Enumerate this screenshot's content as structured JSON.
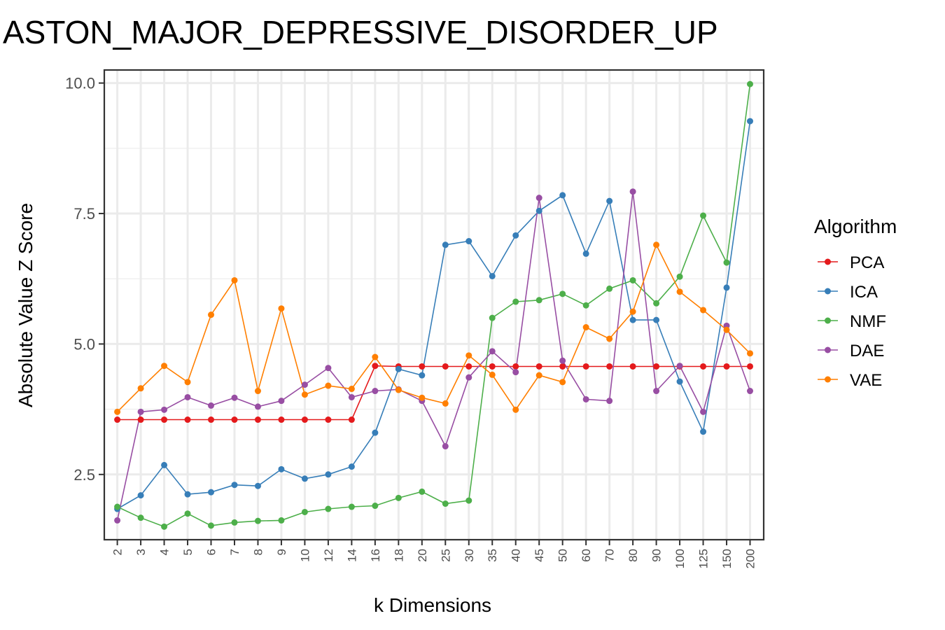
{
  "chart_data": {
    "type": "line",
    "title": "ASTON_MAJOR_DEPRESSIVE_DISORDER_UP",
    "xlabel": "k Dimensions",
    "ylabel": "Absolute Value Z Score",
    "categories": [
      "2",
      "3",
      "4",
      "5",
      "6",
      "7",
      "8",
      "9",
      "10",
      "12",
      "14",
      "16",
      "18",
      "20",
      "25",
      "30",
      "35",
      "40",
      "45",
      "50",
      "60",
      "70",
      "80",
      "90",
      "100",
      "125",
      "150",
      "200"
    ],
    "ylim": [
      1.25,
      10.25
    ],
    "yticks": [
      2.5,
      5.0,
      7.5,
      10.0
    ],
    "ytick_labels": [
      "2.5",
      "5.0",
      "7.5",
      "10.0"
    ],
    "grid": true,
    "legend": {
      "title": "Algorithm",
      "position": "right"
    },
    "series": [
      {
        "name": "PCA",
        "color": "#e41a1c",
        "values": [
          3.55,
          3.55,
          3.55,
          3.55,
          3.55,
          3.55,
          3.55,
          3.55,
          3.55,
          3.55,
          3.55,
          4.58,
          4.57,
          4.57,
          4.57,
          4.57,
          4.57,
          4.57,
          4.57,
          4.57,
          4.57,
          4.57,
          4.57,
          4.57,
          4.57,
          4.57,
          4.57,
          4.57
        ]
      },
      {
        "name": "ICA",
        "color": "#377eb8",
        "values": [
          1.84,
          2.1,
          2.68,
          2.12,
          2.16,
          2.3,
          2.28,
          2.6,
          2.42,
          2.5,
          2.65,
          3.3,
          4.52,
          4.4,
          6.9,
          6.97,
          6.3,
          7.08,
          7.55,
          7.85,
          6.73,
          7.74,
          5.46,
          5.46,
          4.28,
          3.32,
          6.08,
          9.27
        ]
      },
      {
        "name": "NMF",
        "color": "#4daf4a",
        "values": [
          1.88,
          1.67,
          1.5,
          1.75,
          1.52,
          1.58,
          1.61,
          1.62,
          1.78,
          1.84,
          1.88,
          1.9,
          2.05,
          2.17,
          1.94,
          2.0,
          5.5,
          5.81,
          5.84,
          5.96,
          5.74,
          6.06,
          6.22,
          5.78,
          6.29,
          7.46,
          6.56,
          9.98
        ]
      },
      {
        "name": "DAE",
        "color": "#984ea3",
        "values": [
          1.62,
          3.7,
          3.74,
          3.98,
          3.82,
          3.97,
          3.8,
          3.91,
          4.22,
          4.54,
          3.98,
          4.1,
          4.13,
          3.91,
          3.04,
          4.36,
          4.86,
          4.46,
          7.8,
          4.68,
          3.94,
          3.91,
          7.92,
          4.1,
          4.58,
          3.7,
          5.35,
          4.1
        ]
      },
      {
        "name": "VAE",
        "color": "#ff7f00",
        "values": [
          3.7,
          4.15,
          4.58,
          4.27,
          5.56,
          6.22,
          4.1,
          5.68,
          4.03,
          4.2,
          4.14,
          4.75,
          4.12,
          3.97,
          3.86,
          4.78,
          4.41,
          3.74,
          4.4,
          4.27,
          5.32,
          5.1,
          5.62,
          6.9,
          6.0,
          5.65,
          5.27,
          4.82
        ]
      }
    ]
  }
}
